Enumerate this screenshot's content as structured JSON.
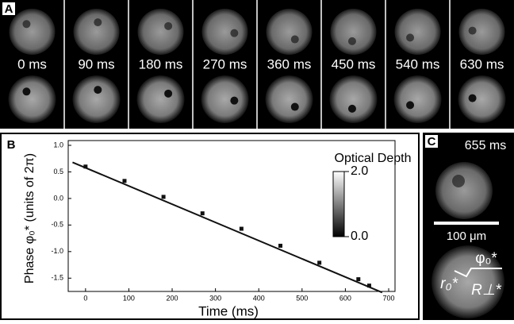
{
  "panels": {
    "A": {
      "letter": "A",
      "frames": [
        "0 ms",
        "90 ms",
        "180 ms",
        "270 ms",
        "360 ms",
        "450 ms",
        "540 ms",
        "630 ms"
      ]
    },
    "C": {
      "letter": "C",
      "time": "655 ms",
      "scale_bar": "100 μm",
      "phase_symbol": "φ₀*",
      "radius_symbol": "r₀*",
      "perp_symbol": "R⊥*"
    }
  },
  "chart_data": {
    "type": "scatter",
    "panel_label": "B",
    "xlabel": "Time (ms)",
    "ylabel": "Phase φ₀* (units of 2π)",
    "xlim": [
      -40,
      700
    ],
    "xticks": [
      0,
      100,
      200,
      300,
      400,
      500,
      600,
      700
    ],
    "ylim": [
      -1.75,
      1.0
    ],
    "yticks": [
      {
        "value": 1.0,
        "label": "1.0"
      },
      0.5,
      {
        "value": 0,
        "label": "0.0"
      },
      -0.5,
      {
        "value": -1.0,
        "label": "-1.0"
      },
      -1.5
    ],
    "series": [
      {
        "x": [
          0,
          90,
          180,
          270,
          360,
          450,
          540,
          630,
          655
        ],
        "values": [
          0.6,
          0.33,
          0.03,
          -0.28,
          -0.57,
          -0.89,
          -1.21,
          -1.52,
          -1.64
        ],
        "color": "#111111",
        "marker": "square"
      },
      {
        "x": [
          -30,
          685
        ],
        "values": [
          0.68,
          -1.77
        ],
        "color": "#111111"
      }
    ],
    "colorbar": {
      "title": "Optical Depth",
      "lim": [
        0,
        2
      ],
      "ticks": [
        {
          "value": 2,
          "label": "2.0"
        },
        {
          "value": 0,
          "label": "0.0"
        }
      ]
    }
  }
}
